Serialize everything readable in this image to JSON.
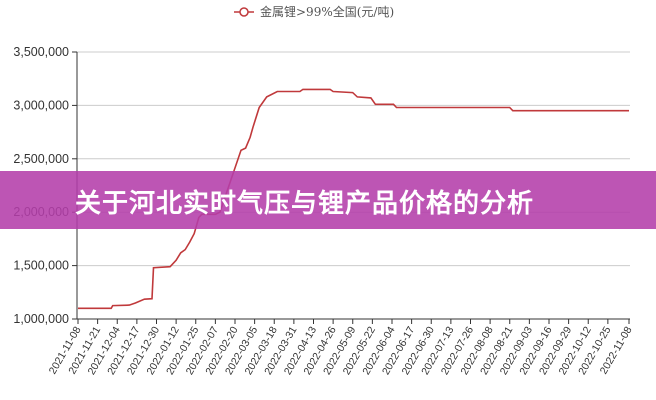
{
  "banner": {
    "title": "关于河北实时气压与锂产品价格的分析"
  },
  "colors": {
    "series": "#c0393b",
    "banner": "#b43eaa",
    "grid": "#cccccc"
  },
  "chart_data": {
    "type": "line",
    "title": "",
    "xlabel": "",
    "ylabel": "",
    "legend_position": "top-center",
    "grid": true,
    "ylim": [
      1000000,
      3500000
    ],
    "xlim": [
      "2021-11-08",
      "2022-11-08"
    ],
    "y_ticks": [
      "1,000,000",
      "1,500,000",
      "2,000,000",
      "2,500,000",
      "3,000,000",
      "3,500,000"
    ],
    "y_tick_values": [
      1000000,
      1500000,
      2000000,
      2500000,
      3000000,
      3500000
    ],
    "x_ticks": [
      "2021-11-08",
      "2021-11-21",
      "2021-12-04",
      "2021-12-17",
      "2021-12-30",
      "2022-01-12",
      "2022-01-25",
      "2022-02-07",
      "2022-02-20",
      "2022-03-05",
      "2022-03-18",
      "2022-03-31",
      "2022-04-13",
      "2022-04-26",
      "2022-05-09",
      "2022-05-22",
      "2022-06-04",
      "2022-06-17",
      "2022-06-30",
      "2022-07-13",
      "2022-07-26",
      "2022-08-08",
      "2022-08-21",
      "2022-09-03",
      "2022-09-16",
      "2022-09-29",
      "2022-10-12",
      "2022-10-25",
      "2022-11-08"
    ],
    "series": [
      {
        "name": "金属锂>99%全国(元/吨)",
        "points": [
          [
            "2021-11-08",
            1100000
          ],
          [
            "2021-11-30",
            1100000
          ],
          [
            "2021-12-01",
            1125000
          ],
          [
            "2021-12-12",
            1130000
          ],
          [
            "2021-12-16",
            1150000
          ],
          [
            "2021-12-22",
            1185000
          ],
          [
            "2021-12-27",
            1190000
          ],
          [
            "2021-12-28",
            1480000
          ],
          [
            "2022-01-08",
            1490000
          ],
          [
            "2022-01-12",
            1550000
          ],
          [
            "2022-01-15",
            1620000
          ],
          [
            "2022-01-18",
            1650000
          ],
          [
            "2022-01-21",
            1720000
          ],
          [
            "2022-01-24",
            1800000
          ],
          [
            "2022-01-27",
            1950000
          ],
          [
            "2022-01-29",
            1980000
          ],
          [
            "2022-02-07",
            1980000
          ],
          [
            "2022-02-10",
            2000000
          ],
          [
            "2022-02-24",
            2580000
          ],
          [
            "2022-02-27",
            2600000
          ],
          [
            "2022-03-02",
            2700000
          ],
          [
            "2022-03-04",
            2800000
          ],
          [
            "2022-03-08",
            2980000
          ],
          [
            "2022-03-13",
            3080000
          ],
          [
            "2022-03-20",
            3130000
          ],
          [
            "2022-04-04",
            3130000
          ],
          [
            "2022-04-06",
            3150000
          ],
          [
            "2022-04-24",
            3150000
          ],
          [
            "2022-04-26",
            3130000
          ],
          [
            "2022-05-09",
            3120000
          ],
          [
            "2022-05-12",
            3080000
          ],
          [
            "2022-05-21",
            3070000
          ],
          [
            "2022-05-24",
            3010000
          ],
          [
            "2022-06-05",
            3010000
          ],
          [
            "2022-06-07",
            2980000
          ],
          [
            "2022-08-21",
            2980000
          ],
          [
            "2022-08-23",
            2950000
          ],
          [
            "2022-11-08",
            2950000
          ]
        ]
      }
    ]
  }
}
